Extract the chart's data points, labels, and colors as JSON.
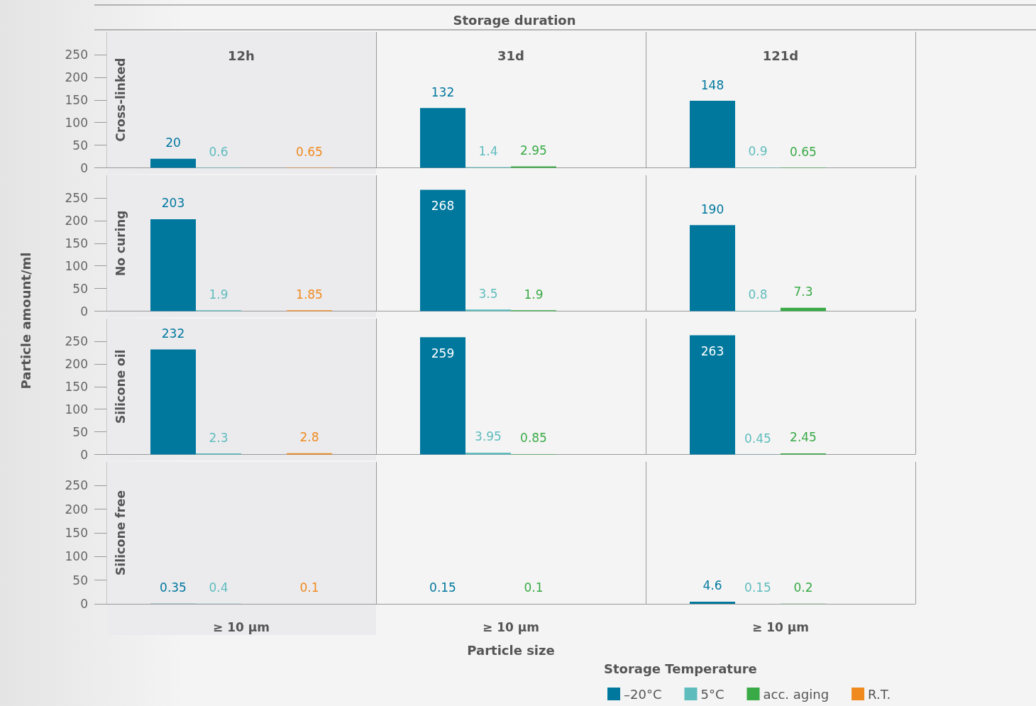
{
  "chart_data": [
    {
      "type": "bar",
      "ylabel": "Cross-linked",
      "categories": [
        null,
        null,
        null
      ],
      "ylim": [
        0,
        300
      ],
      "yticks": [
        0,
        50,
        100,
        150,
        200,
        250
      ],
      "data_labels": true,
      "tick_labels": "y",
      "series": [
        {
          "color": "#00789e",
          "values": [
            20,
            132,
            148
          ]
        },
        {
          "color": "#5fbcbd",
          "values": [
            0.6,
            1.4,
            0.9
          ]
        },
        {
          "color": "#3aaa47",
          "values": [
            null,
            2.95,
            0.65
          ]
        },
        {
          "color": "#f08a1e",
          "values": [
            0.65,
            null,
            null
          ]
        }
      ]
    },
    {
      "type": "bar",
      "ylabel": "No curing",
      "categories": [
        null,
        null,
        null
      ],
      "ylim": [
        0,
        300
      ],
      "yticks": [
        0,
        50,
        100,
        150,
        200,
        250
      ],
      "data_labels": true,
      "tick_labels": "y",
      "series": [
        {
          "color": "#00789e",
          "values": [
            203,
            268,
            190
          ]
        },
        {
          "color": "#5fbcbd",
          "values": [
            1.9,
            3.5,
            0.8
          ]
        },
        {
          "color": "#3aaa47",
          "values": [
            null,
            1.9,
            7.3
          ]
        },
        {
          "color": "#f08a1e",
          "values": [
            1.85,
            null,
            null
          ]
        }
      ]
    },
    {
      "type": "bar",
      "ylabel": "Silicone oil",
      "categories": [
        null,
        null,
        null
      ],
      "ylim": [
        0,
        300
      ],
      "yticks": [
        0,
        50,
        100,
        150,
        200,
        250
      ],
      "data_labels": true,
      "tick_labels": "y",
      "series": [
        {
          "color": "#00789e",
          "values": [
            232,
            259,
            263
          ]
        },
        {
          "color": "#5fbcbd",
          "values": [
            2.3,
            3.95,
            0.45
          ]
        },
        {
          "color": "#3aaa47",
          "values": [
            null,
            0.85,
            2.45
          ]
        },
        {
          "color": "#f08a1e",
          "values": [
            2.8,
            null,
            null
          ]
        }
      ]
    },
    {
      "type": "bar",
      "ylabel": "Silicone free",
      "categories": [
        "≥ 10 µm",
        "≥ 10 µm",
        "≥ 10 µm"
      ],
      "ylim": [
        0,
        300
      ],
      "yticks": [
        0,
        50,
        100,
        150,
        200,
        250
      ],
      "data_labels": true,
      "series": [
        {
          "color": "#00789e",
          "values": [
            0.35,
            0.15,
            4.6
          ]
        },
        {
          "color": "#5fbcbd",
          "values": [
            0.4,
            null,
            0.15
          ]
        },
        {
          "color": "#3aaa47",
          "values": [
            null,
            0.1,
            0.2
          ]
        },
        {
          "color": "#f08a1e",
          "values": [
            0.1,
            null,
            null
          ]
        }
      ]
    },
    {
      "type": "other",
      "title": "Storage duration",
      "annotations": [
        "12h",
        "31d",
        "121d"
      ],
      "xlabel": "Particle size",
      "ylabel": "Particle amount/ml",
      "legend_title": "Storage Temperature",
      "legend": "bottom",
      "series": [
        {
          "name": "–20°C",
          "color": "#00789e"
        },
        {
          "name": "5°C",
          "color": "#5fbcbd"
        },
        {
          "name": "acc. aging",
          "color": "#3aaa47"
        },
        {
          "name": "R.T.",
          "color": "#f08a1e"
        }
      ]
    }
  ]
}
